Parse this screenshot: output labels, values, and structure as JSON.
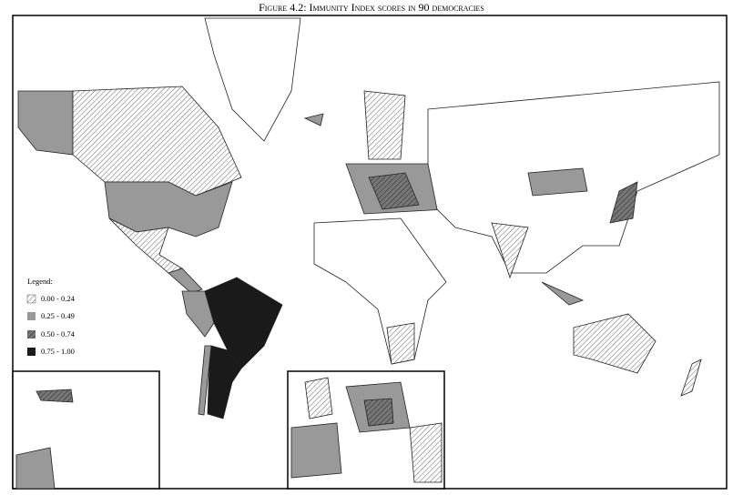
{
  "title": "Figure 4.2: Immunity Index scores in 90 democracies",
  "legend": {
    "heading": "Legend:",
    "items": [
      {
        "label": "0.00 - 0.24"
      },
      {
        "label": "0.25 - 0.49"
      },
      {
        "label": "0.50 - 0.74"
      },
      {
        "label": "0.75 - 1.00"
      }
    ]
  }
}
